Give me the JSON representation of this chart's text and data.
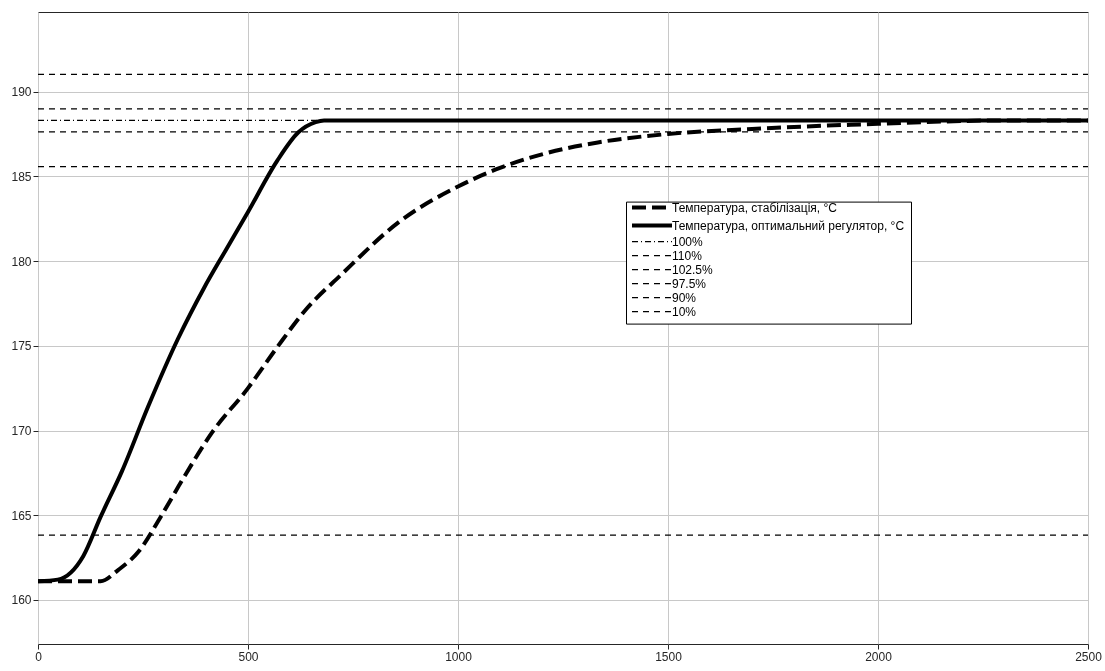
{
  "chart_data": {
    "type": "line",
    "xlim": [
      0,
      2500
    ],
    "ylim": [
      157.4,
      194.7
    ],
    "xticks": [
      0,
      500,
      1000,
      1500,
      2000,
      2500
    ],
    "yticks": [
      160,
      165,
      170,
      175,
      180,
      185,
      190
    ],
    "grid": true,
    "legend": "right",
    "series": [
      {
        "name": "Температура, стабілізація, °C",
        "color": "#000000",
        "line_style": "dashed",
        "x": [
          0,
          100,
          149,
          190,
          241,
          292,
          344,
          415,
          500,
          569,
          640,
          722,
          859,
          1000,
          1100,
          1200,
          1333,
          1500,
          1700,
          2000,
          2300,
          2500
        ],
        "values": [
          161.1,
          161.1,
          161.1,
          161.75,
          162.9,
          164.9,
          167.1,
          169.9,
          172.5,
          174.9,
          177.2,
          179.2,
          182.3,
          184.4,
          185.5,
          186.3,
          187.0,
          187.5,
          187.8,
          188.1,
          188.3,
          188.3
        ]
      },
      {
        "name": "Температура, оптимальний регулятор, °C",
        "color": "#000000",
        "line_style": "solid",
        "x": [
          0,
          47,
          108,
          149,
          200,
          262,
          333,
          395,
          446,
          500,
          569,
          620,
          661,
          681,
          1000,
          1500,
          2500
        ],
        "values": [
          161.1,
          161.2,
          162.6,
          164.9,
          167.6,
          171.4,
          175.4,
          178.4,
          180.6,
          182.9,
          185.9,
          187.6,
          188.2,
          188.3,
          188.3,
          188.3,
          188.3
        ]
      },
      {
        "name": "100%",
        "color": "#000000",
        "line_style": "dashdot",
        "x": [
          0,
          2500
        ],
        "values": [
          188.3,
          188.3
        ]
      },
      {
        "name": "110%",
        "color": "#000000",
        "line_style": "dashed",
        "x": [
          0,
          2500
        ],
        "values": [
          191.02,
          191.02
        ]
      },
      {
        "name": "102.5%",
        "color": "#000000",
        "line_style": "dashed",
        "x": [
          0,
          2500
        ],
        "values": [
          188.98,
          188.98
        ]
      },
      {
        "name": "97.5%",
        "color": "#000000",
        "line_style": "dashed",
        "x": [
          0,
          2500
        ],
        "values": [
          187.62,
          187.62
        ]
      },
      {
        "name": "90%",
        "color": "#000000",
        "line_style": "dashed",
        "x": [
          0,
          2500
        ],
        "values": [
          185.58,
          185.58
        ]
      },
      {
        "name": "10%",
        "color": "#000000",
        "line_style": "dashed",
        "x": [
          0,
          2500
        ],
        "values": [
          163.82,
          163.82
        ]
      }
    ]
  }
}
